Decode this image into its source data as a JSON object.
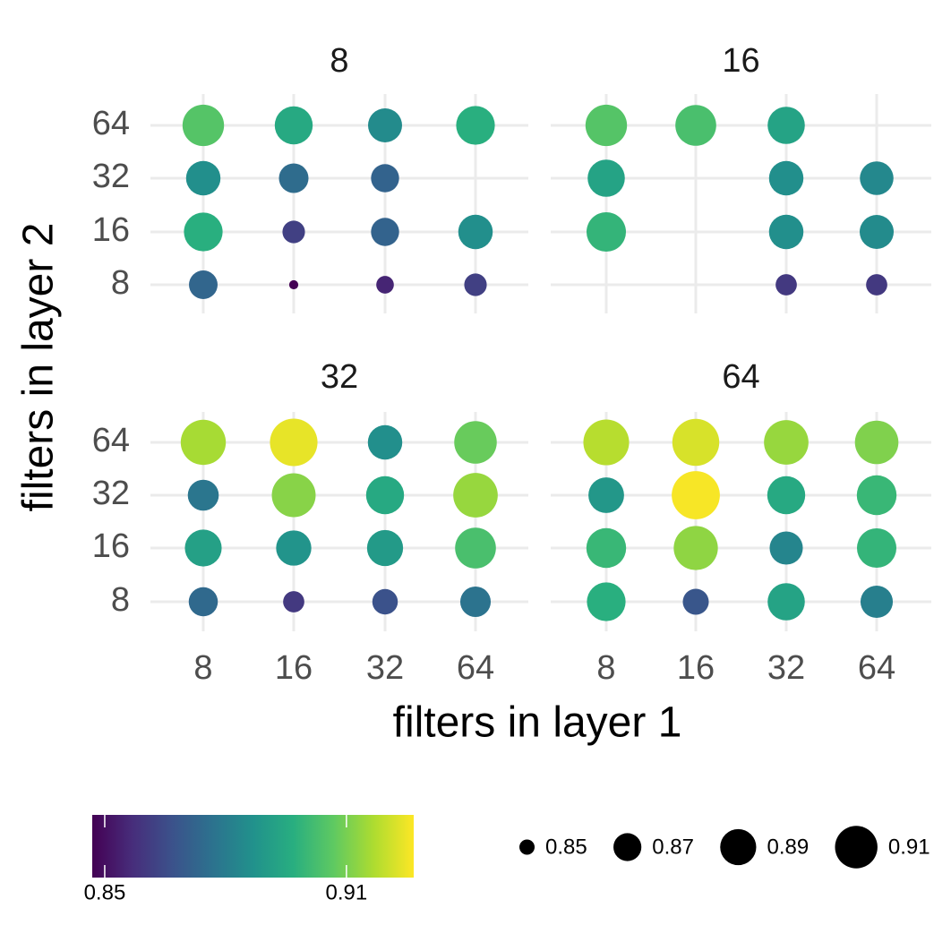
{
  "chart_data": {
    "type": "bubble",
    "x_label": "filters in layer 1",
    "y_label": "filters in layer 2",
    "x_categories": [
      8,
      16,
      32,
      64
    ],
    "y_categories": [
      8,
      16,
      32,
      64
    ],
    "colormap": "viridis",
    "grid": true,
    "color_lim": [
      0.8469,
      0.9267
    ],
    "color_ticks": [
      0.85,
      0.91
    ],
    "size_legend": [
      0.85,
      0.87,
      0.89,
      0.91
    ],
    "facets": [
      {
        "title": "8",
        "x": [
          8,
          16,
          32,
          64,
          8,
          16,
          32,
          8,
          16,
          32,
          64,
          8,
          16,
          32,
          64
        ],
        "y": [
          64,
          64,
          64,
          64,
          32,
          32,
          32,
          16,
          16,
          16,
          16,
          8,
          8,
          8,
          8
        ],
        "values": [
          0.905,
          0.895,
          0.885,
          0.897,
          0.886,
          0.875,
          0.872,
          0.897,
          0.862,
          0.872,
          0.886,
          0.873,
          0.847,
          0.855,
          0.862
        ]
      },
      {
        "title": "16",
        "x": [
          8,
          16,
          32,
          8,
          32,
          64,
          8,
          32,
          64,
          32,
          64
        ],
        "y": [
          64,
          64,
          64,
          32,
          32,
          32,
          16,
          16,
          16,
          8,
          8
        ],
        "values": [
          0.905,
          0.903,
          0.893,
          0.893,
          0.886,
          0.884,
          0.899,
          0.886,
          0.885,
          0.86,
          0.86
        ]
      },
      {
        "title": "32",
        "x": [
          8,
          16,
          32,
          64,
          8,
          16,
          32,
          64,
          8,
          16,
          32,
          64,
          8,
          16,
          32,
          64
        ],
        "y": [
          64,
          64,
          64,
          64,
          32,
          32,
          32,
          32,
          16,
          16,
          16,
          16,
          8,
          8,
          8,
          8
        ],
        "values": [
          0.916,
          0.924,
          0.886,
          0.908,
          0.878,
          0.912,
          0.895,
          0.914,
          0.892,
          0.888,
          0.89,
          0.903,
          0.874,
          0.86,
          0.867,
          0.877
        ]
      },
      {
        "title": "64",
        "x": [
          8,
          16,
          32,
          64,
          8,
          16,
          32,
          64,
          8,
          16,
          32,
          64,
          8,
          16,
          32,
          64
        ],
        "y": [
          64,
          64,
          64,
          64,
          32,
          32,
          32,
          32,
          16,
          16,
          16,
          16,
          8,
          8,
          8,
          8
        ],
        "values": [
          0.918,
          0.922,
          0.914,
          0.911,
          0.889,
          0.926,
          0.895,
          0.9,
          0.9,
          0.913,
          0.883,
          0.899,
          0.897,
          0.868,
          0.893,
          0.881
        ]
      }
    ]
  }
}
